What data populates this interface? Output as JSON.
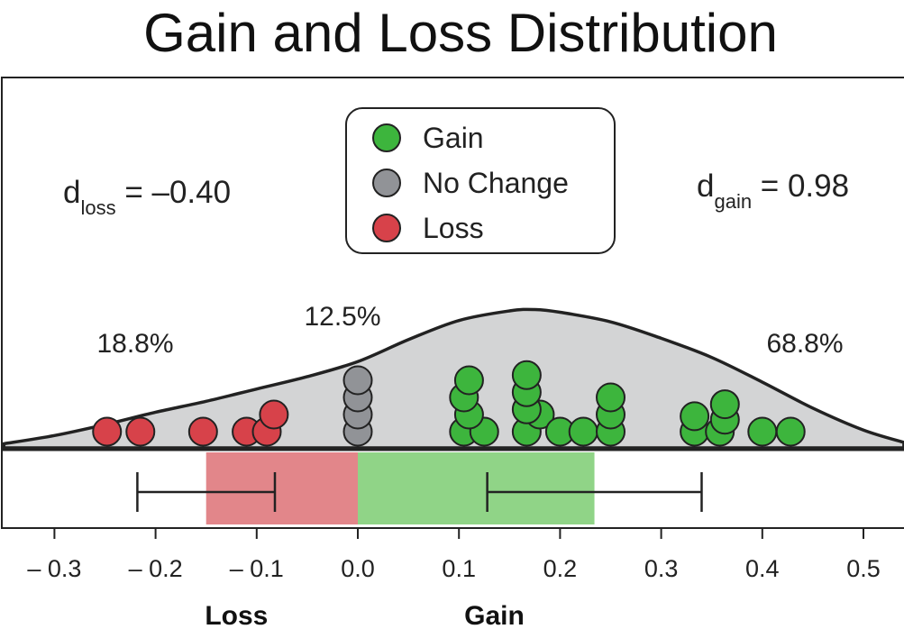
{
  "chart_data": {
    "type": "dotplot",
    "title": "Gain and Loss Distribution",
    "x_axis": {
      "range": [
        -0.35,
        0.54
      ],
      "ticks": [
        -0.3,
        -0.2,
        -0.1,
        0.0,
        0.1,
        0.2,
        0.3,
        0.4,
        0.5
      ],
      "tick_labels": [
        "– 0.3",
        "– 0.2",
        "– 0.1",
        "0.0",
        "0.1",
        "0.2",
        "0.3",
        "0.4",
        "0.5"
      ],
      "category_labels": [
        {
          "text": "Loss",
          "x": -0.12
        },
        {
          "text": "Gain",
          "x": 0.135
        }
      ]
    },
    "legend": {
      "position": "top-center",
      "entries": [
        {
          "label": "Gain",
          "color": "#3db53d"
        },
        {
          "label": "No Change",
          "color": "#919397"
        },
        {
          "label": "Loss",
          "color": "#d7424a"
        }
      ]
    },
    "annotations": {
      "d_loss": {
        "base": "d",
        "subscript": "loss",
        "value": " = –0.40"
      },
      "d_gain": {
        "base": "d",
        "subscript": "gain",
        "value": " = 0.98"
      },
      "pct_loss": "18.8%",
      "pct_no_change": "12.5%",
      "pct_gain": "68.8%"
    },
    "density": {
      "x": [
        -0.35,
        -0.3,
        -0.25,
        -0.2,
        -0.15,
        -0.1,
        -0.05,
        0.0,
        0.05,
        0.1,
        0.15,
        0.175,
        0.2,
        0.25,
        0.3,
        0.35,
        0.4,
        0.45,
        0.5,
        0.54
      ],
      "y": [
        0.03,
        0.09,
        0.17,
        0.26,
        0.34,
        0.43,
        0.52,
        0.63,
        0.79,
        0.93,
        1.0,
        1.01,
        0.99,
        0.92,
        0.8,
        0.66,
        0.48,
        0.29,
        0.13,
        0.04
      ]
    },
    "points": {
      "loss": [
        {
          "x": -0.248,
          "level": 0
        },
        {
          "x": -0.215,
          "level": 0
        },
        {
          "x": -0.153,
          "level": 0
        },
        {
          "x": -0.11,
          "level": 0
        },
        {
          "x": -0.09,
          "level": 0
        },
        {
          "x": -0.083,
          "level": 1
        }
      ],
      "no_change": [
        {
          "x": 0.0,
          "level": 0
        },
        {
          "x": 0.0,
          "level": 1
        },
        {
          "x": 0.0,
          "level": 2
        },
        {
          "x": 0.0,
          "level": 3
        }
      ],
      "gain": [
        {
          "x": 0.105,
          "level": 0
        },
        {
          "x": 0.125,
          "level": 0
        },
        {
          "x": 0.11,
          "level": 1
        },
        {
          "x": 0.105,
          "level": 2
        },
        {
          "x": 0.11,
          "level": 3
        },
        {
          "x": 0.167,
          "level": 0
        },
        {
          "x": 0.18,
          "level": 1
        },
        {
          "x": 0.167,
          "level": 1.3
        },
        {
          "x": 0.167,
          "level": 2.3
        },
        {
          "x": 0.167,
          "level": 3.3
        },
        {
          "x": 0.2,
          "level": 0
        },
        {
          "x": 0.223,
          "level": 0
        },
        {
          "x": 0.25,
          "level": 0
        },
        {
          "x": 0.25,
          "level": 1
        },
        {
          "x": 0.25,
          "level": 2
        },
        {
          "x": 0.333,
          "level": 0
        },
        {
          "x": 0.333,
          "level": 0.9
        },
        {
          "x": 0.358,
          "level": 0
        },
        {
          "x": 0.363,
          "level": 0.7
        },
        {
          "x": 0.363,
          "level": 1.6
        },
        {
          "x": 0.4,
          "level": 0
        },
        {
          "x": 0.428,
          "level": 0
        }
      ]
    },
    "bars": [
      {
        "name": "loss",
        "from": -0.15,
        "to": 0.0,
        "color": "#e2868a"
      },
      {
        "name": "gain",
        "from": 0.0,
        "to": 0.234,
        "color": "#90d487"
      }
    ],
    "intervals": [
      {
        "name": "loss-interval",
        "from": -0.218,
        "to": -0.082
      },
      {
        "name": "gain-interval",
        "from": 0.128,
        "to": 0.34
      }
    ]
  }
}
